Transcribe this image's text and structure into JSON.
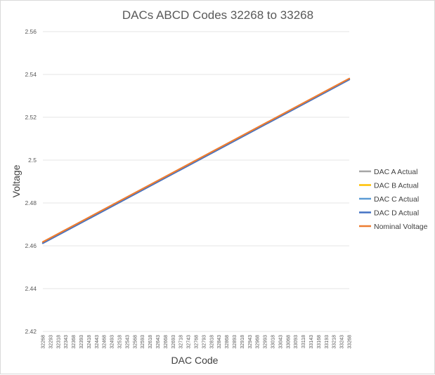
{
  "chart_data": {
    "type": "line",
    "title": "DACs ABCD Codes 32268 to 33268",
    "xlabel": "DAC Code",
    "ylabel": "Voltage",
    "ylim": [
      2.42,
      2.56
    ],
    "yticks": [
      2.42,
      2.44,
      2.46,
      2.48,
      2.5,
      2.52,
      2.54,
      2.56
    ],
    "ytick_labels": [
      "2.42",
      "2.44",
      "2.46",
      "2.48",
      "2.5",
      "2.52",
      "2.54",
      "2.56"
    ],
    "x": [
      "32268",
      "32293",
      "32318",
      "32343",
      "32368",
      "32393",
      "32418",
      "32443",
      "32468",
      "32493",
      "32518",
      "32543",
      "32568",
      "32593",
      "32618",
      "32643",
      "32668",
      "32693",
      "32718",
      "32743",
      "32768",
      "32793",
      "32818",
      "32843",
      "32868",
      "32893",
      "32918",
      "32943",
      "32968",
      "32993",
      "33018",
      "33043",
      "33068",
      "33093",
      "33118",
      "33143",
      "33168",
      "33193",
      "33218",
      "33243",
      "33268"
    ],
    "grid": true,
    "legend_position": "right",
    "series": [
      {
        "name": "DAC A Actual",
        "color": "#a5a5a5",
        "x_start": 32268,
        "x_end": 33268,
        "y_start": 2.4612,
        "y_end": 2.5376
      },
      {
        "name": "DAC B Actual",
        "color": "#ffc000",
        "x_start": 32268,
        "x_end": 33268,
        "y_start": 2.4614,
        "y_end": 2.5378
      },
      {
        "name": "DAC C Actual",
        "color": "#5b9bd5",
        "x_start": 32268,
        "x_end": 33268,
        "y_start": 2.4613,
        "y_end": 2.5377
      },
      {
        "name": "DAC D Actual",
        "color": "#4472c4",
        "x_start": 32268,
        "x_end": 33268,
        "y_start": 2.4612,
        "y_end": 2.5376
      },
      {
        "name": "Nominal Voltage",
        "color": "#ed7d31",
        "x_start": 32268,
        "x_end": 33268,
        "y_start": 2.4618,
        "y_end": 2.5381
      }
    ]
  }
}
